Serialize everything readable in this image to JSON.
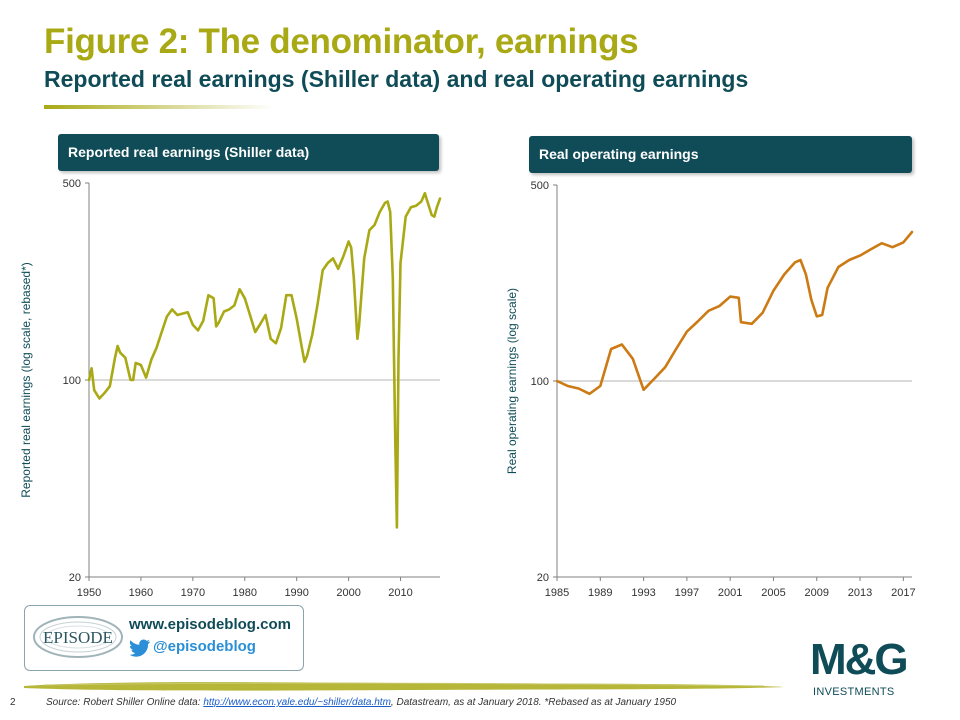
{
  "header": {
    "title": "Figure 2: The denominator, earnings",
    "subtitle": "Reported real earnings (Shiller data) and real operating earnings"
  },
  "colors": {
    "accent_olive": "#a9a915",
    "dark_teal": "#0f4c57",
    "series_left": "#a9a915",
    "series_right": "#cc7a14"
  },
  "branding": {
    "url": "www.episodeblog.com",
    "handle": "@episodeblog",
    "logo_text": "EPISODE",
    "logo_icon": "episode-logo",
    "twitter_icon": "twitter-bird-icon"
  },
  "mg_logo": {
    "letters": "M&G",
    "tagline": "INVESTMENTS"
  },
  "footer": {
    "page": "2",
    "source_prefix": "Source: Robert Shiller Online data:",
    "source_link": "http://www.econ.yale.edu/~shiller/data.htm",
    "source_suffix": ", Datastream, as at January 2018. *Rebased as at January 1950"
  },
  "chart_data": [
    {
      "type": "line",
      "title": "Reported real earnings  (Shiller data)",
      "ylabel": "Reported real earnings (log scale, rebased*)",
      "xlabel": "",
      "y_scale": "log",
      "ylim": [
        20,
        500
      ],
      "yticks": [
        20,
        100,
        500
      ],
      "xlim": [
        1950,
        2017.6
      ],
      "xticks": [
        1950,
        1960,
        1970,
        1980,
        1990,
        2000,
        2010
      ],
      "grid": "horizontal at 100",
      "color": "#a9a915",
      "series": [
        {
          "x": [
            1950,
            1950.5,
            1951,
            1951.5,
            1952,
            1953,
            1954,
            1955,
            1955.5,
            1956,
            1957,
            1958,
            1958.5,
            1959,
            1960,
            1961,
            1962,
            1963,
            1964,
            1965,
            1966,
            1967,
            1968,
            1969,
            1970,
            1971,
            1972,
            1973,
            1974,
            1974.5,
            1975,
            1976,
            1977,
            1978,
            1979,
            1980,
            1981,
            1982,
            1983,
            1984,
            1985,
            1986,
            1987,
            1988,
            1989,
            1990,
            1991,
            1991.5,
            1992,
            1993,
            1994,
            1995,
            1996,
            1997,
            1998,
            1999,
            2000,
            2000.5,
            2001,
            2001.7,
            2002,
            2003,
            2004,
            2005,
            2006,
            2007,
            2007.5,
            2008,
            2008.5,
            2009,
            2009.3,
            2009.6,
            2010,
            2011,
            2012,
            2013,
            2014,
            2014.7,
            2015,
            2016,
            2016.5,
            2017,
            2017.6
          ],
          "y": [
            100,
            110,
            92,
            89,
            86,
            90,
            95,
            120,
            132,
            125,
            120,
            100,
            100,
            115,
            113,
            102,
            118,
            130,
            148,
            168,
            178,
            170,
            172,
            174,
            157,
            150,
            162,
            200,
            195,
            155,
            160,
            175,
            178,
            184,
            210,
            195,
            170,
            148,
            158,
            170,
            140,
            135,
            153,
            200,
            200,
            165,
            130,
            116,
            122,
            145,
            185,
            245,
            260,
            270,
            248,
            275,
            310,
            295,
            230,
            140,
            155,
            270,
            340,
            355,
            395,
            425,
            430,
            395,
            230,
            60,
            30,
            120,
            260,
            380,
            410,
            415,
            430,
            460,
            440,
            385,
            380,
            410,
            440
          ]
        }
      ]
    },
    {
      "type": "line",
      "title": "Real operating earnings",
      "ylabel": "Real operating earnings (log scale)",
      "xlabel": "",
      "y_scale": "log",
      "ylim": [
        20,
        500
      ],
      "yticks": [
        20,
        100,
        500
      ],
      "xlim": [
        1985,
        2017.8
      ],
      "xticks": [
        1985,
        1989,
        1993,
        1997,
        2001,
        2005,
        2009,
        2013,
        2017
      ],
      "grid": "horizontal at 100",
      "color": "#cc7a14",
      "series": [
        {
          "x": [
            1985,
            1986,
            1987,
            1988,
            1989,
            1990,
            1991,
            1992,
            1993,
            1994,
            1995,
            1996,
            1997,
            1998,
            1999,
            2000,
            2001,
            2001.8,
            2002,
            2003,
            2004,
            2005,
            2006,
            2007,
            2007.5,
            2008,
            2008.5,
            2009,
            2009.5,
            2010,
            2011,
            2012,
            2013,
            2014,
            2015,
            2016,
            2017,
            2017.8
          ],
          "y": [
            100,
            96,
            94,
            90,
            96,
            130,
            135,
            120,
            93,
            102,
            112,
            130,
            150,
            163,
            178,
            185,
            200,
            198,
            162,
            160,
            175,
            210,
            240,
            265,
            270,
            240,
            195,
            170,
            172,
            215,
            255,
            270,
            280,
            295,
            310,
            300,
            312,
            340
          ]
        }
      ]
    }
  ]
}
